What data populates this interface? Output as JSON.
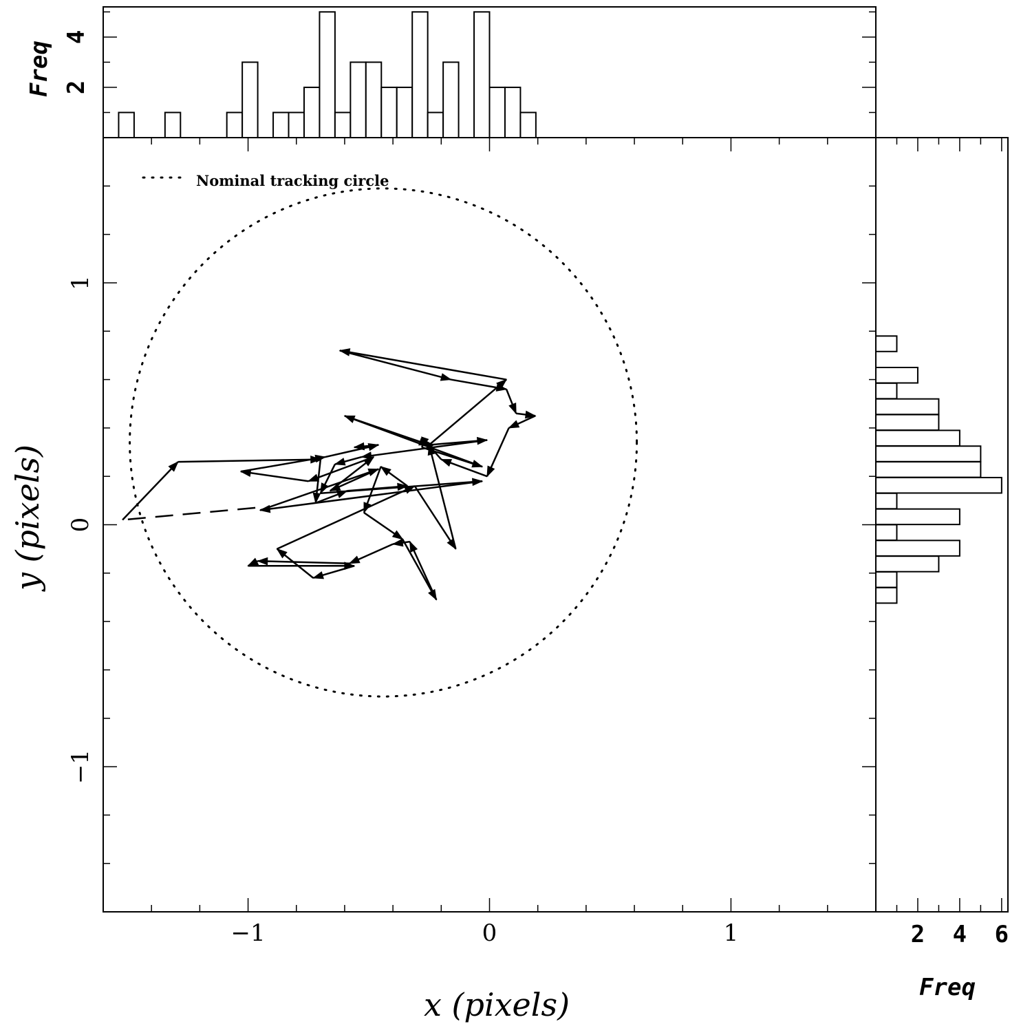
{
  "chart_data": {
    "type": "scatter",
    "description_free": true,
    "main": {
      "xlabel": "x (pixels)",
      "ylabel": "y (pixels)",
      "xlim": [
        -1.6,
        1.6
      ],
      "ylim": [
        -1.6,
        1.6
      ],
      "x_tick_labels": [
        "−1",
        "0",
        "1"
      ],
      "y_tick_labels": [
        "−1",
        "0",
        "1"
      ],
      "legend": {
        "position": "top-left",
        "label": "Nominal tracking circle"
      },
      "circle": {
        "center": [
          -0.44,
          0.34
        ],
        "radius": 1.05
      },
      "dashed_segment": [
        [
          -0.97,
          0.07
        ],
        [
          -1.52,
          0.02
        ]
      ],
      "path": [
        [
          -1.52,
          0.02
        ],
        [
          -1.29,
          0.26
        ],
        [
          -0.7,
          0.27
        ],
        [
          -0.72,
          0.09
        ],
        [
          -0.59,
          0.14
        ],
        [
          -0.34,
          0.16
        ],
        [
          -0.45,
          0.24
        ],
        [
          -0.52,
          0.05
        ],
        [
          -0.36,
          -0.06
        ],
        [
          -0.22,
          -0.31
        ],
        [
          -0.33,
          -0.07
        ],
        [
          -0.4,
          -0.08
        ],
        [
          -0.58,
          -0.16
        ],
        [
          -0.96,
          -0.15
        ],
        [
          -1.0,
          -0.17
        ],
        [
          -0.56,
          -0.17
        ],
        [
          -0.73,
          -0.22
        ],
        [
          -0.88,
          -0.1
        ],
        [
          -0.31,
          0.16
        ],
        [
          -0.14,
          -0.1
        ],
        [
          -0.25,
          0.33
        ],
        [
          0.07,
          0.6
        ],
        [
          -0.62,
          0.72
        ],
        [
          -0.16,
          0.6
        ],
        [
          0.07,
          0.56
        ],
        [
          0.11,
          0.46
        ],
        [
          0.19,
          0.45
        ],
        [
          0.08,
          0.4
        ],
        [
          -0.01,
          0.2
        ],
        [
          -0.2,
          0.27
        ],
        [
          -0.27,
          0.35
        ],
        [
          -0.28,
          0.32
        ],
        [
          -0.03,
          0.24
        ],
        [
          -0.6,
          0.45
        ],
        [
          -0.25,
          0.33
        ],
        [
          -0.01,
          0.35
        ],
        [
          -0.53,
          0.28
        ],
        [
          -0.64,
          0.25
        ],
        [
          -0.7,
          0.13
        ],
        [
          -0.03,
          0.18
        ],
        [
          -0.95,
          0.06
        ],
        [
          -0.46,
          0.23
        ],
        [
          -0.66,
          0.14
        ],
        [
          -0.48,
          0.28
        ],
        [
          -0.75,
          0.18
        ],
        [
          -1.03,
          0.22
        ],
        [
          -0.68,
          0.28
        ],
        [
          -0.46,
          0.33
        ],
        [
          -0.56,
          0.32
        ]
      ]
    },
    "top_histogram": {
      "ylabel": "Freq",
      "ylim": [
        0,
        5.2
      ],
      "y_tick_labels": [
        "2",
        "4"
      ],
      "bin_width": 0.064,
      "bin_start": -1.6,
      "values": [
        0,
        1,
        0,
        0,
        1,
        0,
        0,
        0,
        1,
        3,
        0,
        1,
        1,
        2,
        5,
        1,
        3,
        3,
        2,
        2,
        5,
        1,
        3,
        0,
        5,
        2,
        2,
        1,
        0,
        0,
        0,
        0,
        0,
        0,
        0,
        0,
        0,
        0,
        0,
        0,
        0,
        0,
        0,
        0,
        0,
        0,
        0,
        0,
        0,
        0
      ]
    },
    "right_histogram": {
      "xlabel": "Freq",
      "xlim": [
        0,
        6.3
      ],
      "x_tick_labels": [
        "2",
        "4",
        "6"
      ],
      "bin_height": 0.064,
      "bins_top_down": [
        {
          "y_top": 0.78,
          "count": 1
        },
        {
          "y_top": 0.65,
          "count": 2
        },
        {
          "y_top": 0.585,
          "count": 1
        },
        {
          "y_top": 0.52,
          "count": 3
        },
        {
          "y_top": 0.455,
          "count": 3
        },
        {
          "y_top": 0.39,
          "count": 4
        },
        {
          "y_top": 0.325,
          "count": 5
        },
        {
          "y_top": 0.26,
          "count": 5
        },
        {
          "y_top": 0.195,
          "count": 6
        },
        {
          "y_top": 0.13,
          "count": 1
        },
        {
          "y_top": 0.065,
          "count": 4
        },
        {
          "y_top": 0.0,
          "count": 1
        },
        {
          "y_top": -0.065,
          "count": 4
        },
        {
          "y_top": -0.13,
          "count": 3
        },
        {
          "y_top": -0.195,
          "count": 1
        },
        {
          "y_top": -0.26,
          "count": 1
        }
      ]
    }
  }
}
